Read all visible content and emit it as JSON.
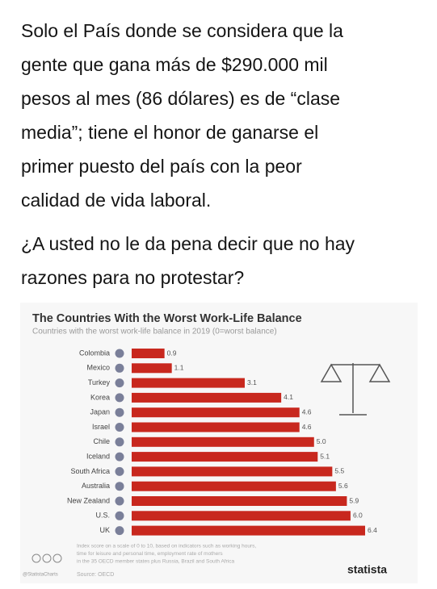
{
  "post": {
    "paragraphs": [
      [
        "Solo el País donde se considera que la",
        "gente que gana más de $290.000 mil",
        "pesos al mes (86 dólares) es de “clase",
        "media”; tiene el honor de ganarse el",
        "primer puesto del país con la peor",
        "calidad de vida laboral."
      ],
      [
        "¿A usted no le da pena decir que no hay",
        "razones para no protestar?"
      ]
    ]
  },
  "chart_data": {
    "type": "bar",
    "orientation": "horizontal",
    "title": "The Countries With the Worst Work-Life Balance",
    "subtitle": "Countries with the worst work-life balance in 2019 (0=worst balance)",
    "categories": [
      "Colombia",
      "Mexico",
      "Turkey",
      "Korea",
      "Japan",
      "Israel",
      "Chile",
      "Iceland",
      "South Africa",
      "Australia",
      "New Zealand",
      "U.S.",
      "UK"
    ],
    "values": [
      0.9,
      1.1,
      3.1,
      4.1,
      4.6,
      4.6,
      5.0,
      5.1,
      5.5,
      5.6,
      5.9,
      6.0,
      6.4
    ],
    "value_labels": [
      "0.9",
      "1.1",
      "3.1",
      "4.1",
      "4.6",
      "4.6",
      "5.0",
      "5.1",
      "5.5",
      "5.6",
      "5.9",
      "6.0",
      "6.4"
    ],
    "color": "#c8281e",
    "note": [
      "Index score on a scale of 0 to 10, based on indicators such as working hours,",
      "time for leisure and personal time, employment rate of mothers",
      "in the 35 OECD member states plus Russia, Brazil and South Africa"
    ],
    "handle": "@StatistaCharts",
    "source": "Source: OECD",
    "brand": "statista"
  }
}
